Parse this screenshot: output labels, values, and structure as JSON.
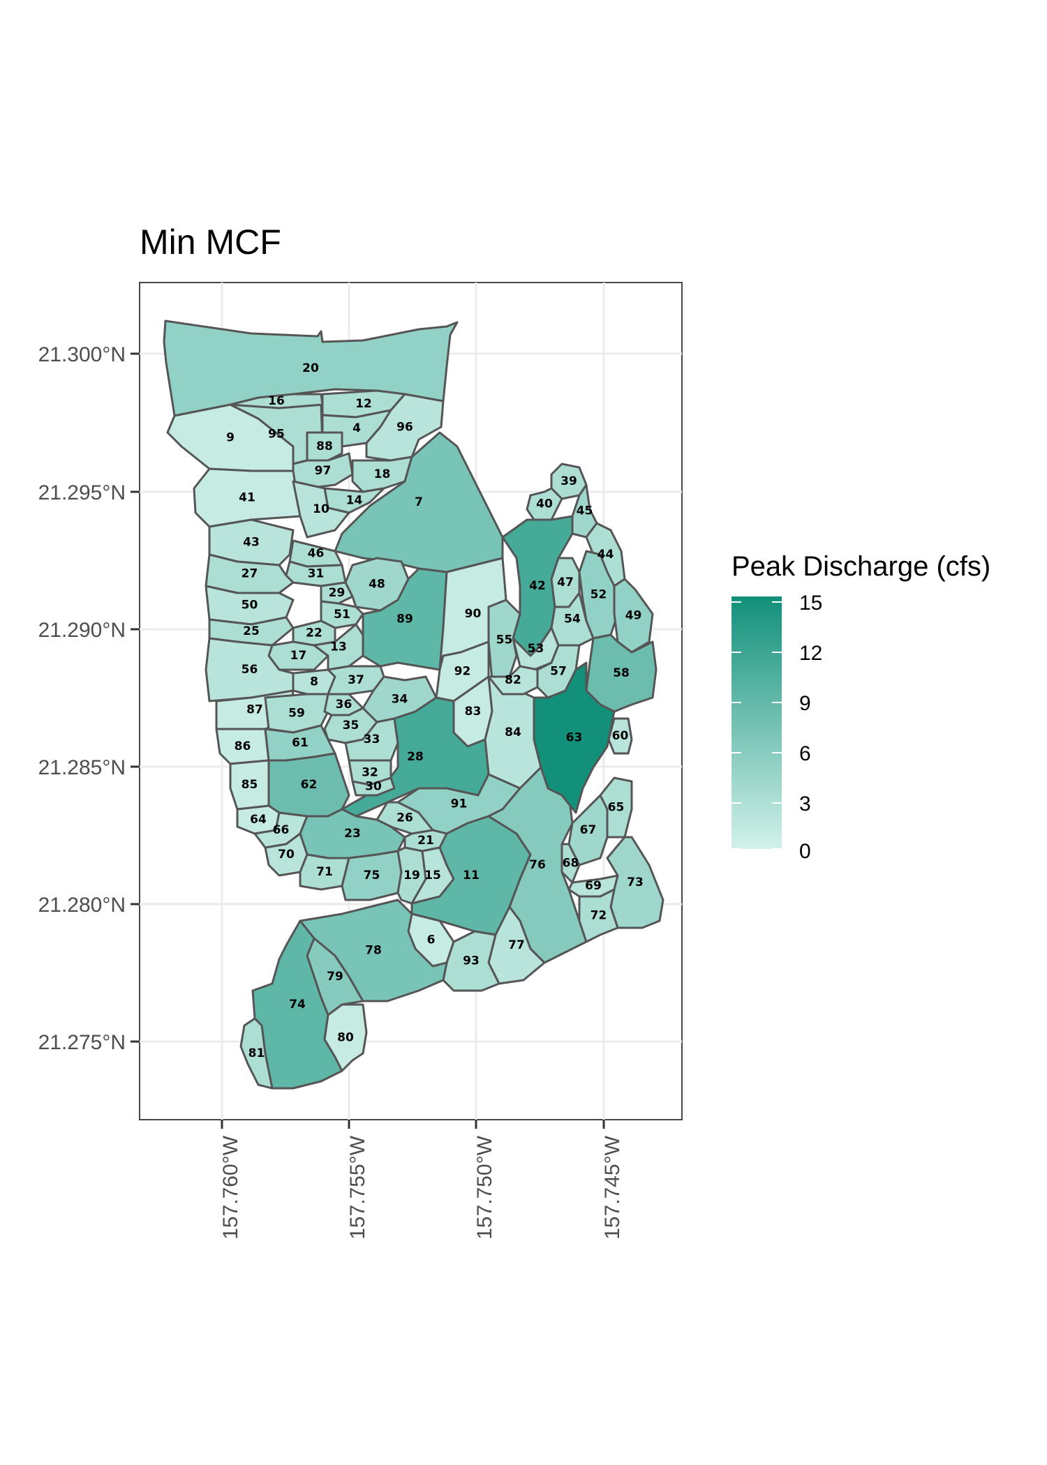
{
  "title": "Min MCF",
  "legend": {
    "title": "Peak Discharge (cfs)",
    "ticks": [
      "15",
      "12",
      "9",
      "6",
      "3",
      "0"
    ],
    "range": [
      0,
      15
    ],
    "color_low": "#d2f1ea",
    "color_high": "#12907a"
  },
  "axes": {
    "lat_ticks": [
      "21.300°N",
      "21.295°N",
      "21.290°N",
      "21.285°N",
      "21.280°N",
      "21.275°N"
    ],
    "lon_ticks": [
      "157.760°W",
      "157.755°W",
      "157.750°W",
      "157.745°W"
    ]
  },
  "chart_data": {
    "type": "choropleth",
    "title": "Min MCF",
    "legend_title": "Peak Discharge (cfs)",
    "regions": [
      {
        "id": "20",
        "value": 5
      },
      {
        "id": "16",
        "value": 3
      },
      {
        "id": "12",
        "value": 3
      },
      {
        "id": "95",
        "value": 3
      },
      {
        "id": "4",
        "value": 3
      },
      {
        "id": "88",
        "value": 3
      },
      {
        "id": "9",
        "value": 1
      },
      {
        "id": "96",
        "value": 2
      },
      {
        "id": "97",
        "value": 3
      },
      {
        "id": "18",
        "value": 3
      },
      {
        "id": "14",
        "value": 3
      },
      {
        "id": "41",
        "value": 1
      },
      {
        "id": "10",
        "value": 2
      },
      {
        "id": "7",
        "value": 7
      },
      {
        "id": "39",
        "value": 3
      },
      {
        "id": "40",
        "value": 3
      },
      {
        "id": "45",
        "value": 4
      },
      {
        "id": "44",
        "value": 3
      },
      {
        "id": "43",
        "value": 2
      },
      {
        "id": "46",
        "value": 3
      },
      {
        "id": "42",
        "value": 11
      },
      {
        "id": "31",
        "value": 3
      },
      {
        "id": "27",
        "value": 3
      },
      {
        "id": "47",
        "value": 3
      },
      {
        "id": "52",
        "value": 5
      },
      {
        "id": "48",
        "value": 4
      },
      {
        "id": "29",
        "value": 3
      },
      {
        "id": "50",
        "value": 2
      },
      {
        "id": "51",
        "value": 3
      },
      {
        "id": "90",
        "value": 1
      },
      {
        "id": "49",
        "value": 5
      },
      {
        "id": "89",
        "value": 9
      },
      {
        "id": "54",
        "value": 3
      },
      {
        "id": "25",
        "value": 3
      },
      {
        "id": "22",
        "value": 3
      },
      {
        "id": "55",
        "value": 4
      },
      {
        "id": "13",
        "value": 3
      },
      {
        "id": "17",
        "value": 3
      },
      {
        "id": "53",
        "value": 2
      },
      {
        "id": "58",
        "value": 8
      },
      {
        "id": "56",
        "value": 2
      },
      {
        "id": "57",
        "value": 3
      },
      {
        "id": "92",
        "value": 1
      },
      {
        "id": "82",
        "value": 2
      },
      {
        "id": "8",
        "value": 2
      },
      {
        "id": "37",
        "value": 3
      },
      {
        "id": "34",
        "value": 4
      },
      {
        "id": "87",
        "value": 1
      },
      {
        "id": "59",
        "value": 3
      },
      {
        "id": "36",
        "value": 3
      },
      {
        "id": "35",
        "value": 3
      },
      {
        "id": "83",
        "value": 1
      },
      {
        "id": "63",
        "value": 15
      },
      {
        "id": "84",
        "value": 2
      },
      {
        "id": "60",
        "value": 2
      },
      {
        "id": "86",
        "value": 1
      },
      {
        "id": "61",
        "value": 5
      },
      {
        "id": "33",
        "value": 3
      },
      {
        "id": "28",
        "value": 11
      },
      {
        "id": "32",
        "value": 3
      },
      {
        "id": "85",
        "value": 1
      },
      {
        "id": "62",
        "value": 8
      },
      {
        "id": "30",
        "value": 3
      },
      {
        "id": "65",
        "value": 3
      },
      {
        "id": "91",
        "value": 5
      },
      {
        "id": "26",
        "value": 3
      },
      {
        "id": "67",
        "value": 4
      },
      {
        "id": "64",
        "value": 1
      },
      {
        "id": "66",
        "value": 2
      },
      {
        "id": "23",
        "value": 7
      },
      {
        "id": "21",
        "value": 3
      },
      {
        "id": "68",
        "value": 3
      },
      {
        "id": "76",
        "value": 6
      },
      {
        "id": "70",
        "value": 2
      },
      {
        "id": "71",
        "value": 3
      },
      {
        "id": "19",
        "value": 3
      },
      {
        "id": "69",
        "value": 2
      },
      {
        "id": "75",
        "value": 5
      },
      {
        "id": "15",
        "value": 2
      },
      {
        "id": "11",
        "value": 9
      },
      {
        "id": "73",
        "value": 4
      },
      {
        "id": "72",
        "value": 3
      },
      {
        "id": "6",
        "value": 1
      },
      {
        "id": "77",
        "value": 2
      },
      {
        "id": "78",
        "value": 7
      },
      {
        "id": "93",
        "value": 3
      },
      {
        "id": "79",
        "value": 6
      },
      {
        "id": "74",
        "value": 9
      },
      {
        "id": "80",
        "value": 1
      },
      {
        "id": "81",
        "value": 3
      }
    ]
  }
}
